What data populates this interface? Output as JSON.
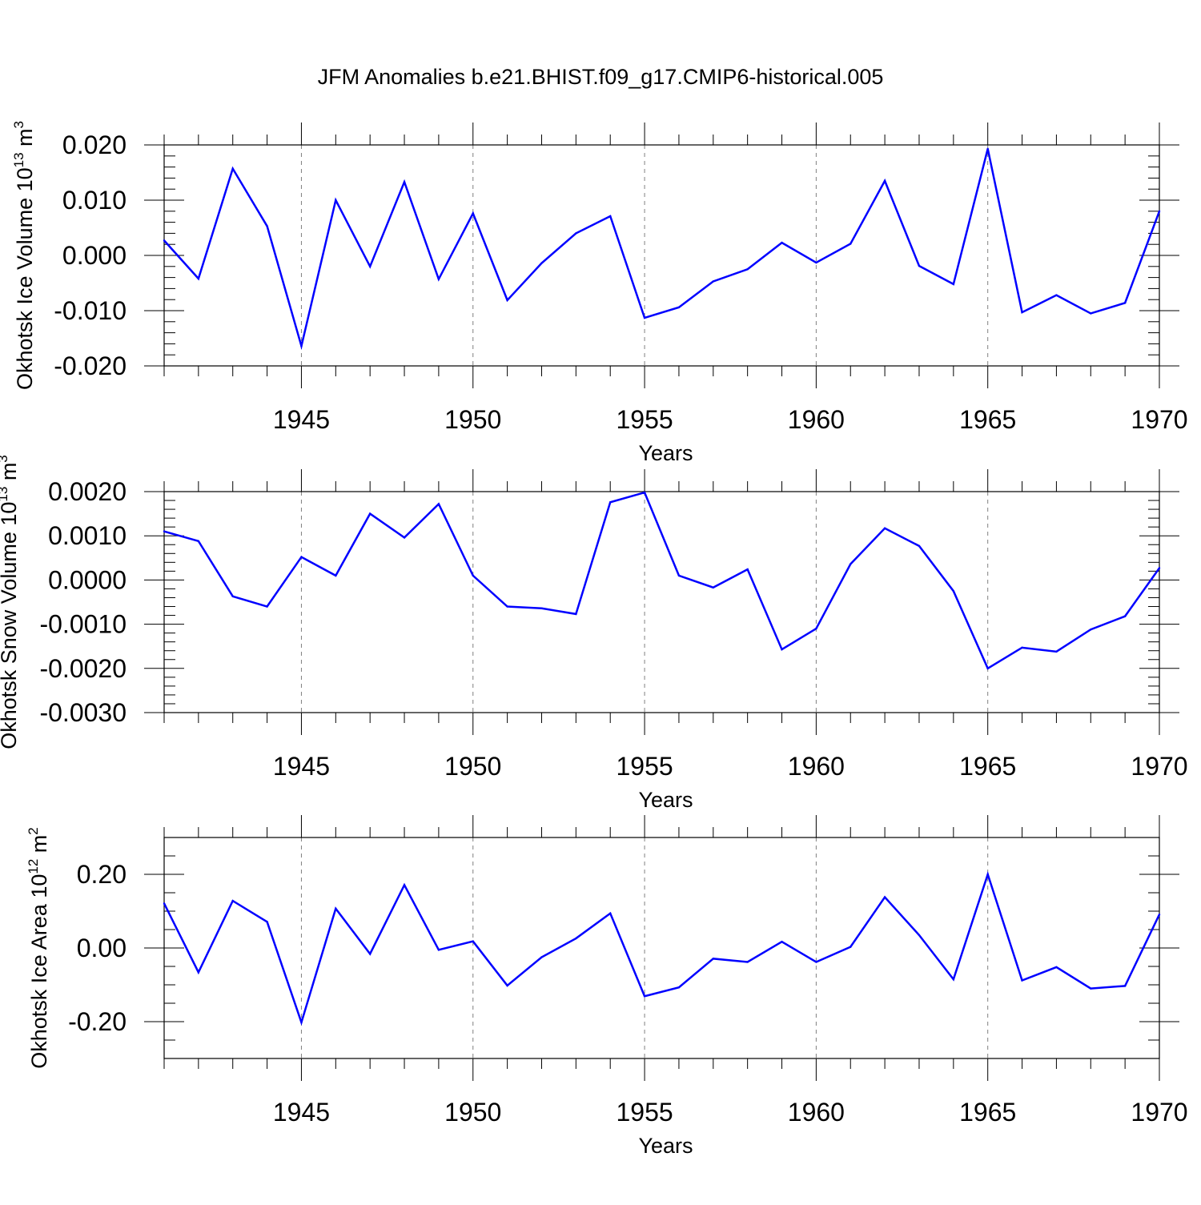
{
  "title": "JFM Anomalies b.e21.BHIST.f09_g17.CMIP6-historical.005",
  "line_color": "#0000ff",
  "grid_color": "#808080",
  "chart_data": [
    {
      "type": "line",
      "ylabel_main": "Okhotsk Ice Volume 10",
      "ylabel_sup": "13",
      "ylabel_unit": " m",
      "ylabel_unit_sup": "3",
      "xlabel": "Years",
      "xlim": [
        1941,
        1970
      ],
      "ylim": [
        -0.02,
        0.02
      ],
      "y_major_ticks": [
        -0.02,
        -0.01,
        0.0,
        0.01,
        0.02
      ],
      "y_tick_labels": [
        "-0.020",
        "-0.010",
        "0.000",
        "0.010",
        "0.020"
      ],
      "x_major_ticks": [
        1945,
        1950,
        1955,
        1960,
        1965,
        1970
      ],
      "x_tick_labels": [
        "1945",
        "1950",
        "1955",
        "1960",
        "1965",
        "1970"
      ],
      "x": [
        1941,
        1942,
        1943,
        1944,
        1945,
        1946,
        1947,
        1948,
        1949,
        1950,
        1951,
        1952,
        1953,
        1954,
        1955,
        1956,
        1957,
        1958,
        1959,
        1960,
        1961,
        1962,
        1963,
        1964,
        1965,
        1966,
        1967,
        1968,
        1969,
        1970
      ],
      "values": [
        0.0027,
        -0.0042,
        0.0157,
        0.0053,
        -0.0164,
        0.01,
        -0.002,
        0.0133,
        -0.0043,
        0.0076,
        -0.0081,
        -0.0014,
        0.004,
        0.0071,
        -0.0113,
        -0.0094,
        -0.0047,
        -0.0025,
        0.0023,
        -0.0013,
        0.0021,
        0.0135,
        -0.0019,
        -0.0052,
        0.0193,
        -0.0103,
        -0.0072,
        -0.0105,
        -0.0086,
        0.008
      ]
    },
    {
      "type": "line",
      "ylabel_main": "Okhotsk Snow Volume 10",
      "ylabel_sup": "13",
      "ylabel_unit": " m",
      "ylabel_unit_sup": "3",
      "xlabel": "Years",
      "xlim": [
        1941,
        1970
      ],
      "ylim": [
        -0.003,
        0.002
      ],
      "y_major_ticks": [
        -0.003,
        -0.002,
        -0.001,
        0.0,
        0.001,
        0.002
      ],
      "y_tick_labels": [
        "-0.0030",
        "-0.0020",
        "-0.0010",
        "0.0000",
        "0.0010",
        "0.0020"
      ],
      "x_major_ticks": [
        1945,
        1950,
        1955,
        1960,
        1965,
        1970
      ],
      "x_tick_labels": [
        "1945",
        "1950",
        "1955",
        "1960",
        "1965",
        "1970"
      ],
      "x": [
        1941,
        1942,
        1943,
        1944,
        1945,
        1946,
        1947,
        1948,
        1949,
        1950,
        1951,
        1952,
        1953,
        1954,
        1955,
        1956,
        1957,
        1958,
        1959,
        1960,
        1961,
        1962,
        1963,
        1964,
        1965,
        1966,
        1967,
        1968,
        1969,
        1970
      ],
      "values": [
        0.0011,
        0.00088,
        -0.00037,
        -0.0006,
        0.00052,
        0.0001,
        0.0015,
        0.00096,
        0.00172,
        0.0001,
        -0.0006,
        -0.00064,
        -0.00077,
        0.00176,
        0.00198,
        0.0001,
        -0.00017,
        0.00024,
        -0.00157,
        -0.0011,
        0.00036,
        0.00117,
        0.00077,
        -0.00025,
        -0.002,
        -0.00153,
        -0.00162,
        -0.00112,
        -0.00082,
        0.00027
      ]
    },
    {
      "type": "line",
      "ylabel_main": "Okhotsk Ice Area 10",
      "ylabel_sup": "12",
      "ylabel_unit": " m",
      "ylabel_unit_sup": "2",
      "xlabel": "Years",
      "xlim": [
        1941,
        1970
      ],
      "ylim": [
        -0.3,
        0.3
      ],
      "y_major_ticks": [
        -0.2,
        0.0,
        0.2
      ],
      "y_tick_labels": [
        "-0.20",
        "0.00",
        "0.20"
      ],
      "x_major_ticks": [
        1945,
        1950,
        1955,
        1960,
        1965,
        1970
      ],
      "x_tick_labels": [
        "1945",
        "1950",
        "1955",
        "1960",
        "1965",
        "1970"
      ],
      "x": [
        1941,
        1942,
        1943,
        1944,
        1945,
        1946,
        1947,
        1948,
        1949,
        1950,
        1951,
        1952,
        1953,
        1954,
        1955,
        1956,
        1957,
        1958,
        1959,
        1960,
        1961,
        1962,
        1963,
        1964,
        1965,
        1966,
        1967,
        1968,
        1969,
        1970
      ],
      "values": [
        0.121,
        -0.066,
        0.128,
        0.071,
        -0.202,
        0.107,
        -0.016,
        0.171,
        -0.005,
        0.018,
        -0.102,
        -0.025,
        0.026,
        0.094,
        -0.131,
        -0.107,
        -0.029,
        -0.038,
        0.017,
        -0.038,
        0.003,
        0.138,
        0.035,
        -0.085,
        0.2,
        -0.088,
        -0.052,
        -0.11,
        -0.103,
        0.091
      ]
    }
  ]
}
